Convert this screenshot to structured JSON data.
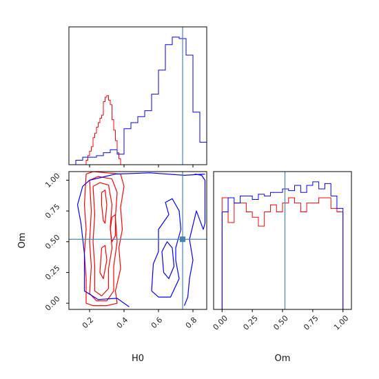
{
  "chart_data": {
    "type": "corner",
    "parameters": [
      "H0",
      "Om"
    ],
    "truths": {
      "H0": 0.74,
      "Om": 0.52
    },
    "colors": {
      "red": "#ff0000",
      "blue": "#0000ff",
      "truth": "#4682b4"
    },
    "panels": [
      {
        "id": "hist_H0",
        "type": "histogram",
        "x_param": "H0",
        "xlim": [
          0.08,
          0.88
        ],
        "x_ticks": [
          0.2,
          0.4,
          0.6,
          0.8
        ],
        "x_tick_labels_visible": false,
        "series": [
          {
            "color": "red",
            "bin_edges": [
              0.08,
              0.12,
              0.18,
              0.19,
              0.2,
              0.21,
              0.22,
              0.23,
              0.24,
              0.25,
              0.26,
              0.27,
              0.28,
              0.29,
              0.3,
              0.31,
              0.32,
              0.33,
              0.34,
              0.35,
              0.36,
              0.37,
              0.38,
              0.39
            ],
            "counts": [
              0,
              0,
              3,
              6,
              9,
              12,
              18,
              21,
              25,
              28,
              31,
              33,
              42,
              45,
              46,
              43,
              40,
              30,
              23,
              16,
              8,
              4,
              0
            ]
          },
          {
            "color": "blue",
            "bin_edges": [
              0.12,
              0.16,
              0.2,
              0.24,
              0.28,
              0.32,
              0.36,
              0.4,
              0.44,
              0.48,
              0.52,
              0.56,
              0.6,
              0.64,
              0.68,
              0.72,
              0.76,
              0.8,
              0.84,
              0.88
            ],
            "counts": [
              3,
              5,
              5,
              6,
              8,
              10,
              7,
              24,
              28,
              32,
              36,
              47,
              63,
              80,
              85,
              84,
              73,
              35,
              15
            ]
          }
        ]
      },
      {
        "id": "hist_Om",
        "type": "histogram",
        "x_param": "Om",
        "xlim": [
          -0.07,
          1.07
        ],
        "x_ticks": [
          0.0,
          0.25,
          0.5,
          0.75,
          1.0
        ],
        "x_tick_labels": [
          "0.00",
          "0.25",
          "0.50",
          "0.75",
          "1.00"
        ],
        "xlabel": "Om",
        "series": [
          {
            "color": "red",
            "bin_edges": [
              0.0,
              0.05,
              0.1,
              0.15,
              0.2,
              0.25,
              0.3,
              0.35,
              0.4,
              0.45,
              0.5,
              0.55,
              0.6,
              0.65,
              0.7,
              0.75,
              0.8,
              0.85,
              0.9,
              0.95,
              1.0
            ],
            "counts": [
              63,
              49,
              60,
              60,
              55,
              52,
              47,
              55,
              59,
              55,
              60,
              63,
              60,
              55,
              60,
              60,
              63,
              63,
              57,
              55
            ]
          },
          {
            "color": "blue",
            "bin_edges": [
              0.0,
              0.05,
              0.1,
              0.15,
              0.2,
              0.25,
              0.3,
              0.35,
              0.4,
              0.45,
              0.5,
              0.55,
              0.6,
              0.65,
              0.7,
              0.75,
              0.8,
              0.85,
              0.9,
              0.95,
              1.0
            ],
            "counts": [
              55,
              63,
              60,
              64,
              64,
              62,
              65,
              64,
              66,
              66,
              68,
              67,
              70,
              66,
              70,
              72,
              68,
              71,
              64,
              57
            ]
          }
        ]
      },
      {
        "id": "contour_H0_Om",
        "type": "contour",
        "x_param": "H0",
        "y_param": "Om",
        "xlim": [
          0.08,
          0.88
        ],
        "ylim": [
          -0.05,
          1.07
        ],
        "x_ticks": [
          0.2,
          0.4,
          0.6,
          0.8
        ],
        "x_tick_labels": [
          "0.2",
          "0.4",
          "0.6",
          "0.8"
        ],
        "y_ticks": [
          0.0,
          0.25,
          0.5,
          0.75,
          1.0
        ],
        "y_tick_labels": [
          "0.00",
          "0.25",
          "0.50",
          "0.75",
          "1.00"
        ],
        "xlabel": "H0",
        "ylabel": "Om",
        "contours": [
          {
            "color": "red",
            "points": [
              [
                0.18,
                1.05
              ],
              [
                0.22,
                1.07
              ],
              [
                0.3,
                1.06
              ],
              [
                0.38,
                1.05
              ],
              [
                0.4,
                0.95
              ],
              [
                0.38,
                0.78
              ],
              [
                0.39,
                0.6
              ],
              [
                0.37,
                0.45
              ],
              [
                0.38,
                0.28
              ],
              [
                0.35,
                0.1
              ],
              [
                0.36,
                0.0
              ],
              [
                0.3,
                -0.02
              ],
              [
                0.22,
                -0.02
              ],
              [
                0.18,
                0.0
              ],
              [
                0.18,
                0.2
              ],
              [
                0.17,
                0.4
              ],
              [
                0.18,
                0.6
              ],
              [
                0.17,
                0.8
              ],
              [
                0.18,
                1.05
              ]
            ]
          },
          {
            "color": "red",
            "points": [
              [
                0.2,
                1.0
              ],
              [
                0.25,
                1.03
              ],
              [
                0.33,
                1.01
              ],
              [
                0.36,
                0.9
              ],
              [
                0.35,
                0.7
              ],
              [
                0.36,
                0.5
              ],
              [
                0.34,
                0.3
              ],
              [
                0.34,
                0.1
              ],
              [
                0.3,
                0.02
              ],
              [
                0.24,
                0.02
              ],
              [
                0.2,
                0.08
              ],
              [
                0.21,
                0.3
              ],
              [
                0.2,
                0.5
              ],
              [
                0.21,
                0.75
              ],
              [
                0.2,
                1.0
              ]
            ]
          },
          {
            "color": "red",
            "points": [
              [
                0.22,
                0.95
              ],
              [
                0.26,
                0.98
              ],
              [
                0.31,
                0.96
              ],
              [
                0.33,
                0.8
              ],
              [
                0.32,
                0.62
              ],
              [
                0.33,
                0.45
              ],
              [
                0.31,
                0.28
              ],
              [
                0.31,
                0.12
              ],
              [
                0.27,
                0.06
              ],
              [
                0.23,
                0.1
              ],
              [
                0.23,
                0.3
              ],
              [
                0.22,
                0.5
              ],
              [
                0.23,
                0.72
              ],
              [
                0.22,
                0.95
              ]
            ]
          },
          {
            "color": "red",
            "points": [
              [
                0.27,
                0.9
              ],
              [
                0.29,
                0.92
              ],
              [
                0.3,
                0.8
              ],
              [
                0.29,
                0.65
              ],
              [
                0.28,
                0.67
              ],
              [
                0.27,
                0.8
              ],
              [
                0.27,
                0.9
              ]
            ]
          },
          {
            "color": "red",
            "points": [
              [
                0.27,
                0.45
              ],
              [
                0.29,
                0.47
              ],
              [
                0.3,
                0.35
              ],
              [
                0.28,
                0.2
              ],
              [
                0.26,
                0.25
              ],
              [
                0.27,
                0.45
              ]
            ]
          },
          {
            "color": "red",
            "points": [
              [
                0.33,
                0.7
              ],
              [
                0.35,
                0.72
              ],
              [
                0.35,
                0.55
              ],
              [
                0.33,
                0.5
              ],
              [
                0.32,
                0.6
              ],
              [
                0.33,
                0.7
              ]
            ]
          },
          {
            "color": "blue",
            "points": [
              [
                0.81,
                1.05
              ],
              [
                0.85,
                1.04
              ],
              [
                0.87,
                1.0
              ],
              [
                0.87,
                0.65
              ],
              [
                0.86,
                0.6
              ],
              [
                0.82,
                0.75
              ],
              [
                0.78,
                0.52
              ],
              [
                0.8,
                0.35
              ],
              [
                0.78,
                0.2
              ],
              [
                0.77,
                0.05
              ],
              [
                0.75,
                -0.02
              ]
            ]
          },
          {
            "color": "blue",
            "points": [
              [
                0.43,
                -0.03
              ],
              [
                0.36,
                0.04
              ],
              [
                0.25,
                0.03
              ],
              [
                0.17,
                0.1
              ],
              [
                0.17,
                0.4
              ],
              [
                0.15,
                0.65
              ],
              [
                0.13,
                0.8
              ],
              [
                0.16,
                0.95
              ],
              [
                0.2,
                1.0
              ],
              [
                0.35,
                1.05
              ],
              [
                0.55,
                1.06
              ],
              [
                0.75,
                1.04
              ],
              [
                0.87,
                1.05
              ]
            ]
          },
          {
            "color": "blue",
            "points": [
              [
                0.56,
                0.1
              ],
              [
                0.6,
                0.05
              ],
              [
                0.67,
                0.05
              ],
              [
                0.72,
                0.2
              ],
              [
                0.7,
                0.35
              ],
              [
                0.7,
                0.45
              ],
              [
                0.73,
                0.6
              ],
              [
                0.72,
                0.75
              ],
              [
                0.68,
                0.85
              ],
              [
                0.64,
                0.82
              ],
              [
                0.66,
                0.72
              ],
              [
                0.6,
                0.6
              ],
              [
                0.6,
                0.42
              ],
              [
                0.57,
                0.32
              ],
              [
                0.56,
                0.1
              ]
            ]
          },
          {
            "color": "blue",
            "points": [
              [
                0.63,
                0.25
              ],
              [
                0.66,
                0.2
              ],
              [
                0.69,
                0.3
              ],
              [
                0.68,
                0.45
              ],
              [
                0.65,
                0.5
              ],
              [
                0.62,
                0.42
              ],
              [
                0.63,
                0.25
              ]
            ]
          }
        ]
      }
    ]
  }
}
